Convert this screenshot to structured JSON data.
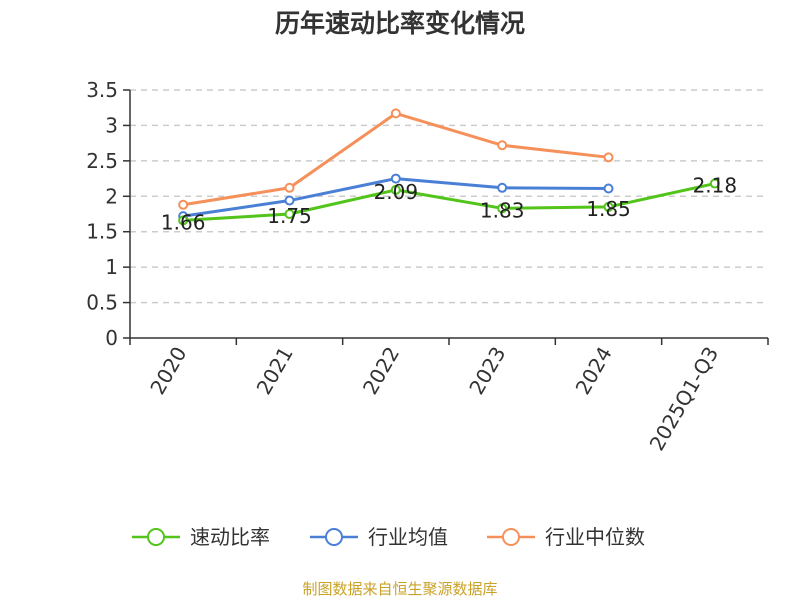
{
  "chart_data": {
    "type": "line",
    "title": "历年速动比率变化情况",
    "categories": [
      "2020",
      "2021",
      "2022",
      "2023",
      "2024",
      "2025Q1-Q3"
    ],
    "ylim": [
      0,
      3.5
    ],
    "yticks": [
      "0",
      "0.5",
      "1",
      "1.5",
      "2",
      "2.5",
      "3",
      "3.5"
    ],
    "ytick_values": [
      0,
      0.5,
      1,
      1.5,
      2,
      2.5,
      3,
      3.5
    ],
    "grid": true,
    "legend_position": "bottom",
    "series": [
      {
        "name": "速动比率",
        "color": "#52c41a",
        "values": [
          1.66,
          1.75,
          2.09,
          1.83,
          1.85,
          2.18
        ],
        "labels": [
          "1.66",
          "1.75",
          "2.09",
          "1.83",
          "1.85",
          "2.18"
        ]
      },
      {
        "name": "行业均值",
        "color": "#4a7fd6",
        "values": [
          1.72,
          1.94,
          2.25,
          2.12,
          2.11,
          null
        ]
      },
      {
        "name": "行业中位数",
        "color": "#f5905a",
        "values": [
          1.88,
          2.12,
          3.17,
          2.72,
          2.55,
          null
        ]
      }
    ],
    "source": "制图数据来自恒生聚源数据库",
    "source_color": "#c9a227"
  }
}
